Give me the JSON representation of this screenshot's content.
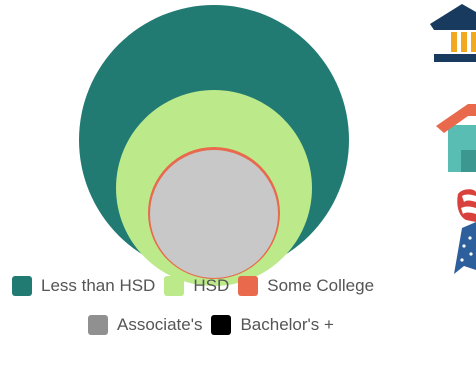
{
  "chart_data": {
    "type": "nested-circles",
    "title": "",
    "series": [
      {
        "name": "Less than HSD",
        "color": "#217b73"
      },
      {
        "name": "HSD",
        "color": "#bce98a"
      },
      {
        "name": "Some College",
        "color": "#e8694c"
      },
      {
        "name": "Associate's",
        "color": "#909090"
      },
      {
        "name": "Bachelor's +",
        "color": "#000000"
      }
    ],
    "legend_position": "bottom"
  },
  "icons": {
    "top": "government-building-icon",
    "middle": "house-icon",
    "bottom": "award-ribbon-icon"
  }
}
